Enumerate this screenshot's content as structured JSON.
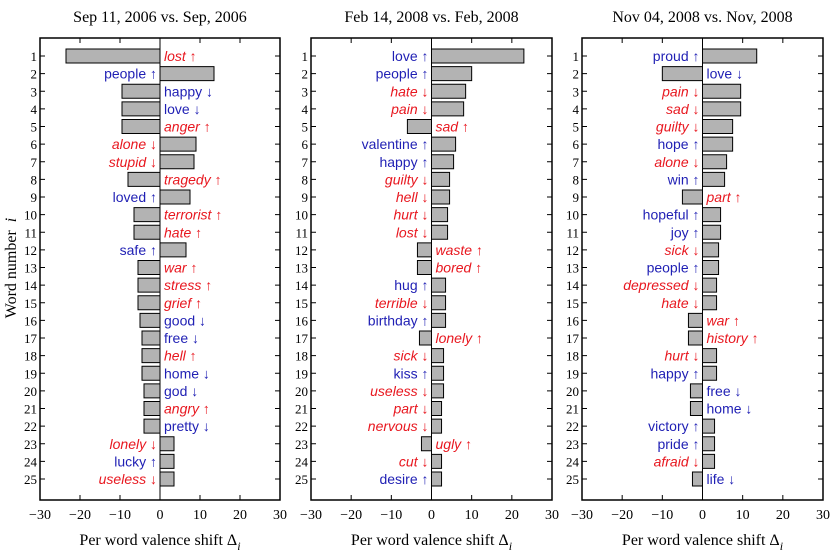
{
  "figure": {
    "ylabel_text": "Word number",
    "ylabel_var": "i",
    "xlabel_text": "Per word valence shift Δ",
    "xlabel_sub": "i"
  },
  "colors": {
    "up_word": "#1f1fb4",
    "down_word": "#e8171f",
    "bar_fill": "#b3b3b3",
    "bar_stroke": "#000000",
    "axis": "#000000"
  },
  "chart_data": [
    {
      "type": "bar",
      "orientation": "horizontal",
      "title": "Sep 11, 2006 vs. Sep, 2006",
      "xlabel": "Per word valence shift Δi",
      "ylabel": "Word number i",
      "xlim": [
        -30,
        30
      ],
      "ylim": [
        1,
        25
      ],
      "xticks": [
        -30,
        -20,
        -10,
        0,
        10,
        20,
        30
      ],
      "words": [
        {
          "rank": 1,
          "word": "lost",
          "value": -23.5,
          "happy": false,
          "freq": "up"
        },
        {
          "rank": 2,
          "word": "people",
          "value": 13.5,
          "happy": true,
          "freq": "up"
        },
        {
          "rank": 3,
          "word": "happy",
          "value": -9.5,
          "happy": true,
          "freq": "down"
        },
        {
          "rank": 4,
          "word": "love",
          "value": -9.5,
          "happy": true,
          "freq": "down"
        },
        {
          "rank": 5,
          "word": "anger",
          "value": -9.5,
          "happy": false,
          "freq": "up"
        },
        {
          "rank": 6,
          "word": "alone",
          "value": 9.0,
          "happy": false,
          "freq": "down"
        },
        {
          "rank": 7,
          "word": "stupid",
          "value": 8.5,
          "happy": false,
          "freq": "down"
        },
        {
          "rank": 8,
          "word": "tragedy",
          "value": -8.0,
          "happy": false,
          "freq": "up"
        },
        {
          "rank": 9,
          "word": "loved",
          "value": 7.5,
          "happy": true,
          "freq": "up"
        },
        {
          "rank": 10,
          "word": "terrorist",
          "value": -6.5,
          "happy": false,
          "freq": "up"
        },
        {
          "rank": 11,
          "word": "hate",
          "value": -6.5,
          "happy": false,
          "freq": "up"
        },
        {
          "rank": 12,
          "word": "safe",
          "value": 6.5,
          "happy": true,
          "freq": "up"
        },
        {
          "rank": 13,
          "word": "war",
          "value": -5.5,
          "happy": false,
          "freq": "up"
        },
        {
          "rank": 14,
          "word": "stress",
          "value": -5.5,
          "happy": false,
          "freq": "up"
        },
        {
          "rank": 15,
          "word": "grief",
          "value": -5.5,
          "happy": false,
          "freq": "up"
        },
        {
          "rank": 16,
          "word": "good",
          "value": -5.0,
          "happy": true,
          "freq": "down"
        },
        {
          "rank": 17,
          "word": "free",
          "value": -4.5,
          "happy": true,
          "freq": "down"
        },
        {
          "rank": 18,
          "word": "hell",
          "value": -4.5,
          "happy": false,
          "freq": "up"
        },
        {
          "rank": 19,
          "word": "home",
          "value": -4.5,
          "happy": true,
          "freq": "down"
        },
        {
          "rank": 20,
          "word": "god",
          "value": -4.0,
          "happy": true,
          "freq": "down"
        },
        {
          "rank": 21,
          "word": "angry",
          "value": -4.0,
          "happy": false,
          "freq": "up"
        },
        {
          "rank": 22,
          "word": "pretty",
          "value": -4.0,
          "happy": true,
          "freq": "down"
        },
        {
          "rank": 23,
          "word": "lonely",
          "value": 3.5,
          "happy": false,
          "freq": "down"
        },
        {
          "rank": 24,
          "word": "lucky",
          "value": 3.5,
          "happy": true,
          "freq": "up"
        },
        {
          "rank": 25,
          "word": "useless",
          "value": 3.5,
          "happy": false,
          "freq": "down"
        }
      ]
    },
    {
      "type": "bar",
      "orientation": "horizontal",
      "title": "Feb 14, 2008 vs. Feb, 2008",
      "xlabel": "Per word valence shift Δi",
      "ylabel": "",
      "xlim": [
        -30,
        30
      ],
      "ylim": [
        1,
        25
      ],
      "xticks": [
        -30,
        -20,
        -10,
        0,
        10,
        20,
        30
      ],
      "words": [
        {
          "rank": 1,
          "word": "love",
          "value": 23.0,
          "happy": true,
          "freq": "up"
        },
        {
          "rank": 2,
          "word": "people",
          "value": 10.0,
          "happy": true,
          "freq": "up"
        },
        {
          "rank": 3,
          "word": "hate",
          "value": 8.5,
          "happy": false,
          "freq": "down"
        },
        {
          "rank": 4,
          "word": "pain",
          "value": 8.0,
          "happy": false,
          "freq": "down"
        },
        {
          "rank": 5,
          "word": "sad",
          "value": -6.0,
          "happy": false,
          "freq": "up"
        },
        {
          "rank": 6,
          "word": "valentine",
          "value": 6.0,
          "happy": true,
          "freq": "up"
        },
        {
          "rank": 7,
          "word": "happy",
          "value": 5.5,
          "happy": true,
          "freq": "up"
        },
        {
          "rank": 8,
          "word": "guilty",
          "value": 4.5,
          "happy": false,
          "freq": "down"
        },
        {
          "rank": 9,
          "word": "hell",
          "value": 4.5,
          "happy": false,
          "freq": "down"
        },
        {
          "rank": 10,
          "word": "hurt",
          "value": 4.0,
          "happy": false,
          "freq": "down"
        },
        {
          "rank": 11,
          "word": "lost",
          "value": 4.0,
          "happy": false,
          "freq": "down"
        },
        {
          "rank": 12,
          "word": "waste",
          "value": -3.5,
          "happy": false,
          "freq": "up"
        },
        {
          "rank": 13,
          "word": "bored",
          "value": -3.5,
          "happy": false,
          "freq": "up"
        },
        {
          "rank": 14,
          "word": "hug",
          "value": 3.5,
          "happy": true,
          "freq": "up"
        },
        {
          "rank": 15,
          "word": "terrible",
          "value": 3.5,
          "happy": false,
          "freq": "down"
        },
        {
          "rank": 16,
          "word": "birthday",
          "value": 3.5,
          "happy": true,
          "freq": "up"
        },
        {
          "rank": 17,
          "word": "lonely",
          "value": -3.0,
          "happy": false,
          "freq": "up"
        },
        {
          "rank": 18,
          "word": "sick",
          "value": 3.0,
          "happy": false,
          "freq": "down"
        },
        {
          "rank": 19,
          "word": "kiss",
          "value": 3.0,
          "happy": true,
          "freq": "up"
        },
        {
          "rank": 20,
          "word": "useless",
          "value": 3.0,
          "happy": false,
          "freq": "down"
        },
        {
          "rank": 21,
          "word": "part",
          "value": 2.5,
          "happy": false,
          "freq": "down"
        },
        {
          "rank": 22,
          "word": "nervous",
          "value": 2.5,
          "happy": false,
          "freq": "down"
        },
        {
          "rank": 23,
          "word": "ugly",
          "value": -2.5,
          "happy": false,
          "freq": "up"
        },
        {
          "rank": 24,
          "word": "cut",
          "value": 2.5,
          "happy": false,
          "freq": "down"
        },
        {
          "rank": 25,
          "word": "desire",
          "value": 2.5,
          "happy": true,
          "freq": "up"
        }
      ]
    },
    {
      "type": "bar",
      "orientation": "horizontal",
      "title": "Nov 04, 2008 vs. Nov, 2008",
      "xlabel": "Per word valence shift Δi",
      "ylabel": "",
      "xlim": [
        -30,
        30
      ],
      "ylim": [
        1,
        25
      ],
      "xticks": [
        -30,
        -20,
        -10,
        0,
        10,
        20,
        30
      ],
      "words": [
        {
          "rank": 1,
          "word": "proud",
          "value": 13.5,
          "happy": true,
          "freq": "up"
        },
        {
          "rank": 2,
          "word": "love",
          "value": -10.0,
          "happy": true,
          "freq": "down"
        },
        {
          "rank": 3,
          "word": "pain",
          "value": 9.5,
          "happy": false,
          "freq": "down"
        },
        {
          "rank": 4,
          "word": "sad",
          "value": 9.5,
          "happy": false,
          "freq": "down"
        },
        {
          "rank": 5,
          "word": "guilty",
          "value": 7.5,
          "happy": false,
          "freq": "down"
        },
        {
          "rank": 6,
          "word": "hope",
          "value": 7.5,
          "happy": true,
          "freq": "up"
        },
        {
          "rank": 7,
          "word": "alone",
          "value": 6.0,
          "happy": false,
          "freq": "down"
        },
        {
          "rank": 8,
          "word": "win",
          "value": 5.5,
          "happy": true,
          "freq": "up"
        },
        {
          "rank": 9,
          "word": "part",
          "value": -5.0,
          "happy": false,
          "freq": "up"
        },
        {
          "rank": 10,
          "word": "hopeful",
          "value": 4.5,
          "happy": true,
          "freq": "up"
        },
        {
          "rank": 11,
          "word": "joy",
          "value": 4.5,
          "happy": true,
          "freq": "up"
        },
        {
          "rank": 12,
          "word": "sick",
          "value": 4.0,
          "happy": false,
          "freq": "down"
        },
        {
          "rank": 13,
          "word": "people",
          "value": 4.0,
          "happy": true,
          "freq": "up"
        },
        {
          "rank": 14,
          "word": "depressed",
          "value": 3.5,
          "happy": false,
          "freq": "down"
        },
        {
          "rank": 15,
          "word": "hate",
          "value": 3.5,
          "happy": false,
          "freq": "down"
        },
        {
          "rank": 16,
          "word": "war",
          "value": -3.5,
          "happy": false,
          "freq": "up"
        },
        {
          "rank": 17,
          "word": "history",
          "value": -3.5,
          "happy": false,
          "freq": "up"
        },
        {
          "rank": 18,
          "word": "hurt",
          "value": 3.5,
          "happy": false,
          "freq": "down"
        },
        {
          "rank": 19,
          "word": "happy",
          "value": 3.5,
          "happy": true,
          "freq": "up"
        },
        {
          "rank": 20,
          "word": "free",
          "value": -3.0,
          "happy": true,
          "freq": "down"
        },
        {
          "rank": 21,
          "word": "home",
          "value": -3.0,
          "happy": true,
          "freq": "down"
        },
        {
          "rank": 22,
          "word": "victory",
          "value": 3.0,
          "happy": true,
          "freq": "up"
        },
        {
          "rank": 23,
          "word": "pride",
          "value": 3.0,
          "happy": true,
          "freq": "up"
        },
        {
          "rank": 24,
          "word": "afraid",
          "value": 3.0,
          "happy": false,
          "freq": "down"
        },
        {
          "rank": 25,
          "word": "life",
          "value": -2.5,
          "happy": true,
          "freq": "down"
        }
      ]
    }
  ]
}
